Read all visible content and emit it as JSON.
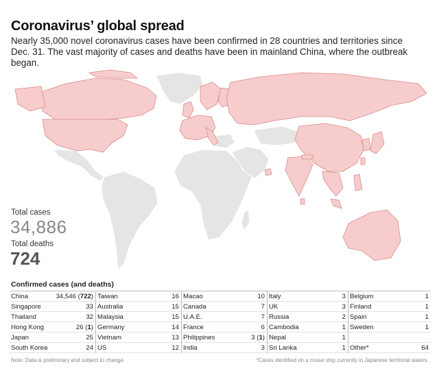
{
  "title": "Coronavirus’ global spread",
  "subtitle": "Nearly 35,000 novel coronavirus cases have been confirmed in 28 countries and territories since Dec. 31. The vast majority of cases and deaths have been in mainland China, where the outbreak began.",
  "colors": {
    "affected": "#f7cccc",
    "affected_stroke": "#d98a8a",
    "unaffected": "#e5e5e5",
    "unaffected_stroke": "#ffffff"
  },
  "stats": {
    "total_cases_label": "Total cases",
    "total_cases_value": "34,886",
    "total_deaths_label": "Total deaths",
    "total_deaths_value": "724"
  },
  "chart_data": {
    "type": "table",
    "title": "Confirmed cases (and deaths)",
    "columns": [
      [
        {
          "name": "China",
          "cases": "34,546",
          "deaths": "722"
        },
        {
          "name": "Singapore",
          "cases": "33",
          "deaths": null
        },
        {
          "name": "Thailand",
          "cases": "32",
          "deaths": null
        },
        {
          "name": "Hong Kong",
          "cases": "26",
          "deaths": "1"
        },
        {
          "name": "Japan",
          "cases": "25",
          "deaths": null
        },
        {
          "name": "South Korea",
          "cases": "24",
          "deaths": null
        }
      ],
      [
        {
          "name": "Taiwan",
          "cases": "16",
          "deaths": null
        },
        {
          "name": "Australia",
          "cases": "15",
          "deaths": null
        },
        {
          "name": "Malaysia",
          "cases": "15",
          "deaths": null
        },
        {
          "name": "Germany",
          "cases": "14",
          "deaths": null
        },
        {
          "name": "Vietnam",
          "cases": "13",
          "deaths": null
        },
        {
          "name": "US",
          "cases": "12",
          "deaths": null
        }
      ],
      [
        {
          "name": "Macao",
          "cases": "10",
          "deaths": null
        },
        {
          "name": "Canada",
          "cases": "7",
          "deaths": null
        },
        {
          "name": "U.A.E.",
          "cases": "7",
          "deaths": null
        },
        {
          "name": "France",
          "cases": "6",
          "deaths": null
        },
        {
          "name": "Philippines",
          "cases": "3",
          "deaths": "1"
        },
        {
          "name": "India",
          "cases": "3",
          "deaths": null
        }
      ],
      [
        {
          "name": "Italy",
          "cases": "3",
          "deaths": null
        },
        {
          "name": "UK",
          "cases": "3",
          "deaths": null
        },
        {
          "name": "Russia",
          "cases": "2",
          "deaths": null
        },
        {
          "name": "Cambodia",
          "cases": "1",
          "deaths": null
        },
        {
          "name": "Nepal",
          "cases": "1",
          "deaths": null
        },
        {
          "name": "Sri Lanka",
          "cases": "1",
          "deaths": null
        }
      ],
      [
        {
          "name": "Belgium",
          "cases": "1",
          "deaths": null
        },
        {
          "name": "Finland",
          "cases": "1",
          "deaths": null
        },
        {
          "name": "Spain",
          "cases": "1",
          "deaths": null
        },
        {
          "name": "Sweden",
          "cases": "1",
          "deaths": null
        },
        {
          "name": "",
          "cases": "",
          "deaths": null
        },
        {
          "name": "Other*",
          "cases": "64",
          "deaths": null
        }
      ]
    ]
  },
  "notes": {
    "left": "Note: Data is preliminary and subject to change.",
    "right": "*Cases identified on a cruise ship currently in Japanese territorial waters."
  }
}
